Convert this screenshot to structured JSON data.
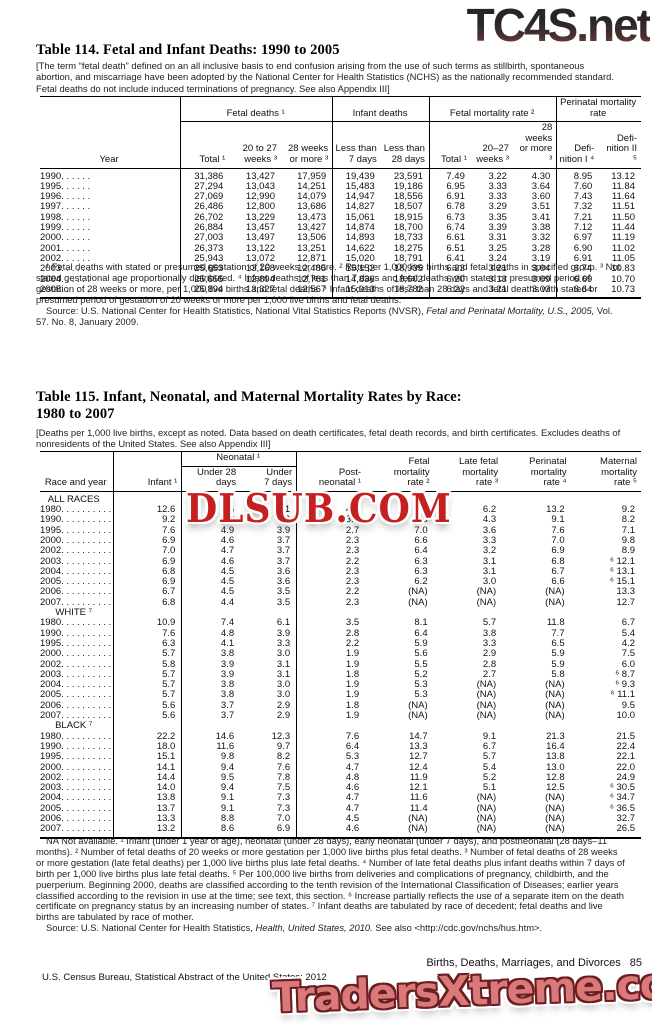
{
  "watermarks": {
    "top": "TC4S.net",
    "middle": "DLSUB.COM",
    "bottom": "TradersXtreme.com",
    "top_color_start": "#262626",
    "top_color_end": "#95564e",
    "middle_color": "#c51f20",
    "bottom_color": "#d9797a"
  },
  "table114": {
    "title": "Table 114. Fetal and Infant Deaths: 1990 to 2005",
    "note": "[The term “fetal death” defined on an all inclusive basis to end confusion arising from the use of such terms as stillbirth, spontaneous abortion, and miscarriage have been adopted by the National Center for Health Statistics (NCHS) as the nationally recommended standard. Fetal deaths do not include induced terminations of pregnancy. See also Appendix III]",
    "header": {
      "year": "Year",
      "groups": [
        "Fetal deaths ¹",
        "Infant deaths",
        "Fetal mortality rate ²",
        "Perinatal mortality rate"
      ],
      "sub": [
        "Total ¹",
        "20 to 27\nweeks ³",
        "28 weeks\nor more ³",
        "Less than\n7 days",
        "Less than\n28 days",
        "Total ¹",
        "20–27\nweeks ³",
        "28 weeks\nor more ³",
        "Defi-\nnition I ⁴",
        "Defi-\nnition II ⁵"
      ]
    },
    "rows": [
      [
        "1990. . . . . .",
        "31,386",
        "13,427",
        "17,959",
        "19,439",
        "23,591",
        "7.49",
        "3.22",
        "4.30",
        "8.95",
        "13.12"
      ],
      [
        "1995. . . . . .",
        "27,294",
        "13,043",
        "14,251",
        "15,483",
        "19,186",
        "6.95",
        "3.33",
        "3.64",
        "7.60",
        "11.84"
      ],
      [
        "1996. . . . . .",
        "27,069",
        "12,990",
        "14,079",
        "14,947",
        "18,556",
        "6.91",
        "3.33",
        "3.60",
        "7.43",
        "11.64"
      ],
      [
        "1997. . . . . .",
        "26,486",
        "12,800",
        "13,686",
        "14,827",
        "18,507",
        "6.78",
        "3.29",
        "3.51",
        "7.32",
        "11.51"
      ],
      [
        "1998. . . . . .",
        "26,702",
        "13,229",
        "13,473",
        "15,061",
        "18,915",
        "6.73",
        "3.35",
        "3.41",
        "7.21",
        "11.50"
      ],
      [
        "1999. . . . . .",
        "26,884",
        "13,457",
        "13,427",
        "14,874",
        "18,700",
        "6.74",
        "3.39",
        "3.38",
        "7.12",
        "11.44"
      ],
      [
        "2000. . . . . .",
        "27,003",
        "13,497",
        "13,506",
        "14,893",
        "18,733",
        "6.61",
        "3.31",
        "3.32",
        "6.97",
        "11.19"
      ],
      [
        "2001. . . . . .",
        "26,373",
        "13,122",
        "13,251",
        "14,622",
        "18,275",
        "6.51",
        "3.25",
        "3.28",
        "6.90",
        "11.02"
      ],
      [
        "2002. . . . . .",
        "25,943",
        "13,072",
        "12,871",
        "15,020",
        "18,791",
        "6.41",
        "3.24",
        "3.19",
        "6.91",
        "11.05"
      ],
      [
        "2003. . . . . .",
        "25,653",
        "13,168",
        "12,485",
        "15,152",
        "18,935",
        "6.23",
        "3.21",
        "3.04",
        "6.74",
        "10.83"
      ],
      [
        "2004. . . . . .",
        "25,655",
        "12,894",
        "12,761",
        "14,836",
        "18,602",
        "6.20",
        "3.13",
        "3.09",
        "6.69",
        "10.70"
      ],
      [
        "2005. . . . . .",
        "25,894",
        "13,327",
        "12,567",
        "15,013",
        "18,782",
        "6.22",
        "3.21",
        "3.03",
        "6.64",
        "10.73"
      ]
    ],
    "footnotes": "¹ Fetal deaths with stated or presumed gestation of 20 weeks or more. ² Rate per 1,000 live births and fetal deaths in specified group. ³ Not stated gestational age proportionally distributed. ⁴ Infant deaths of less than 7 days and fetal deaths with stated or presumed period of gestation of 28 weeks or more, per 1,000 live births and fetal deaths. ⁵ Infant deaths of less than 28 days and fetal deaths with stated or presumed period of gestation of 20 weeks or more per 1,000 live births and fetal deaths.",
    "source_prefix": "Source: U.S. National Center for Health Statistics, National Vital Statistics Reports (NVSR), ",
    "source_italic": "Fetal and Perinatal Mortality, U.S., 2005,",
    "source_suffix": " Vol. 57. No. 8, January 2009."
  },
  "table115": {
    "title": "Table 115. Infant, Neonatal, and Maternal Mortality Rates by Race:\n1980 to 2007",
    "note": "[Deaths per 1,000 live births, except as noted. Data based on death certificates, fetal death records, and birth certificates. Excludes deaths of nonresidents of the United States. See also Appendix III]",
    "header": {
      "race": "Race and year",
      "infant": "Infant ¹",
      "neonatal_group": "Neonatal ¹",
      "under28": "Under 28\ndays",
      "under7": "Under\n7 days",
      "postneonatal": "Post-\nneonatal ¹",
      "fetal": "Fetal\nmortality\nrate ²",
      "late_fetal": "Late fetal\nmortality\nrate ³",
      "perinatal": "Perinatal\nmortality\nrate ⁴",
      "maternal": "Maternal\nmortality\nrate ⁵"
    },
    "sections": [
      {
        "label": "ALL RACES",
        "rows": [
          [
            "1980. . . . . . . . . .",
            "12.6",
            "8.5",
            "7.1",
            "4.1",
            "9.1",
            "6.2",
            "13.2",
            "9.2"
          ],
          [
            "1990. . . . . . . . . .",
            "9.2",
            "5.8",
            "4.8",
            "3.4",
            "7.5",
            "4.3",
            "9.1",
            "8.2"
          ],
          [
            "1995. . . . . . . . . .",
            "7.6",
            "4.9",
            "3.9",
            "2.7",
            "7.0",
            "3.6",
            "7.6",
            "7.1"
          ],
          [
            "2000. . . . . . . . . .",
            "6.9",
            "4.6",
            "3.7",
            "2.3",
            "6.6",
            "3.3",
            "7.0",
            "9.8"
          ],
          [
            "2002. . . . . . . . . .",
            "7.0",
            "4.7",
            "3.7",
            "2.3",
            "6.4",
            "3.2",
            "6.9",
            "8.9"
          ],
          [
            "2003. . . . . . . . . .",
            "6.9",
            "4.6",
            "3.7",
            "2.2",
            "6.3",
            "3.1",
            "6.8",
            "⁶ 12.1"
          ],
          [
            "2004. . . . . . . . . .",
            "6.8",
            "4.5",
            "3.6",
            "2.3",
            "6.3",
            "3.1",
            "6.7",
            "⁶ 13.1"
          ],
          [
            "2005. . . . . . . . . .",
            "6.9",
            "4.5",
            "3.6",
            "2.3",
            "6.2",
            "3.0",
            "6.6",
            "⁶ 15.1"
          ],
          [
            "2006. . . . . . . . . .",
            "6.7",
            "4.5",
            "3.5",
            "2.2",
            "(NA)",
            "(NA)",
            "(NA)",
            "13.3"
          ],
          [
            "2007. . . . . . . . . .",
            "6.8",
            "4.4",
            "3.5",
            "2.3",
            "(NA)",
            "(NA)",
            "(NA)",
            "12.7"
          ]
        ]
      },
      {
        "label": "WHITE ⁷",
        "rows": [
          [
            "1980. . . . . . . . . .",
            "10.9",
            "7.4",
            "6.1",
            "3.5",
            "8.1",
            "5.7",
            "11.8",
            "6.7"
          ],
          [
            "1990. . . . . . . . . .",
            "7.6",
            "4.8",
            "3.9",
            "2.8",
            "6.4",
            "3.8",
            "7.7",
            "5.4"
          ],
          [
            "1995. . . . . . . . . .",
            "6.3",
            "4.1",
            "3.3",
            "2.2",
            "5.9",
            "3.3",
            "6.5",
            "4.2"
          ],
          [
            "2000. . . . . . . . . .",
            "5.7",
            "3.8",
            "3.0",
            "1.9",
            "5.6",
            "2.9",
            "5.9",
            "7.5"
          ],
          [
            "2002. . . . . . . . . .",
            "5.8",
            "3.9",
            "3.1",
            "1.9",
            "5.5",
            "2.8",
            "5.9",
            "6.0"
          ],
          [
            "2003. . . . . . . . . .",
            "5.7",
            "3.9",
            "3.1",
            "1.8",
            "5.2",
            "2.7",
            "5.8",
            "⁶ 8.7"
          ],
          [
            "2004. . . . . . . . . .",
            "5.7",
            "3.8",
            "3.0",
            "1.9",
            "5.3",
            "(NA)",
            "(NA)",
            "⁶ 9.3"
          ],
          [
            "2005. . . . . . . . . .",
            "5.7",
            "3.8",
            "3.0",
            "1.9",
            "5.3",
            "(NA)",
            "(NA)",
            "⁶ 11.1"
          ],
          [
            "2006. . . . . . . . . .",
            "5.6",
            "3.7",
            "2.9",
            "1.8",
            "(NA)",
            "(NA)",
            "(NA)",
            "9.5"
          ],
          [
            "2007. . . . . . . . . .",
            "5.6",
            "3.7",
            "2.9",
            "1.9",
            "(NA)",
            "(NA)",
            "(NA)",
            "10.0"
          ]
        ]
      },
      {
        "label": "BLACK ⁷",
        "rows": [
          [
            "1980. . . . . . . . . .",
            "22.2",
            "14.6",
            "12.3",
            "7.6",
            "14.7",
            "9.1",
            "21.3",
            "21.5"
          ],
          [
            "1990. . . . . . . . . .",
            "18.0",
            "11.6",
            "9.7",
            "6.4",
            "13.3",
            "6.7",
            "16.4",
            "22.4"
          ],
          [
            "1995. . . . . . . . . .",
            "15.1",
            "9.8",
            "8.2",
            "5.3",
            "12.7",
            "5.7",
            "13.8",
            "22.1"
          ],
          [
            "2000. . . . . . . . . .",
            "14.1",
            "9.4",
            "7.6",
            "4.7",
            "12.4",
            "5.4",
            "13.0",
            "22.0"
          ],
          [
            "2002. . . . . . . . . .",
            "14.4",
            "9.5",
            "7.8",
            "4.8",
            "11.9",
            "5.2",
            "12.8",
            "24.9"
          ],
          [
            "2003. . . . . . . . . .",
            "14.0",
            "9.4",
            "7.5",
            "4.6",
            "12.1",
            "5.1",
            "12.5",
            "⁶ 30.5"
          ],
          [
            "2004. . . . . . . . . .",
            "13.8",
            "9.1",
            "7.3",
            "4.7",
            "11.6",
            "(NA)",
            "(NA)",
            "⁶ 34.7"
          ],
          [
            "2005. . . . . . . . . .",
            "13.7",
            "9.1",
            "7.3",
            "4.7",
            "11.4",
            "(NA)",
            "(NA)",
            "⁶ 36.5"
          ],
          [
            "2006. . . . . . . . . .",
            "13.3",
            "8.8",
            "7.0",
            "4.5",
            "(NA)",
            "(NA)",
            "(NA)",
            "32.7"
          ],
          [
            "2007. . . . . . . . . .",
            "13.2",
            "8.6",
            "6.9",
            "4.6",
            "(NA)",
            "(NA)",
            "(NA)",
            "26.5"
          ]
        ]
      }
    ],
    "footnotes": "NA Not available. ¹ Infant (under 1 year of age), neonatal (under 28 days), early neonatal (under 7 days), and postneonatal (28 days–11 months). ² Number of fetal deaths of 20 weeks or more gestation per 1,000 live births plus fetal deaths. ³ Number of fetal deaths of 28 weeks or more gestation (late fetal deaths) per 1,000 live births plus late fetal deaths. ⁴ Number of late fetal deaths plus infant deaths within 7 days of birth per 1,000 live births plus late fetal deaths. ⁵ Per 100,000 live births from deliveries and complications of pregnancy, childbirth, and the puerperium. Beginning 2000, deaths are classified according to the tenth revision of the International Classification of Diseases; earlier years classified according to the revision in use at the time; see text, this section. ⁶ Increase partially reflects the use of a separate item on the death certificate on pregnancy status by an increasing number of states. ⁷ Infant deaths are tabulated by race of decedent; fetal deaths and live births are tabulated by race of mother.",
    "source_prefix": "Source: U.S. National Center for Health Statistics, ",
    "source_italic": "Health, United States, 2010.",
    "source_suffix": " See also <http://cdc.gov/nchs/hus.htm>."
  },
  "footer": {
    "section_title": "Births, Deaths, Marriages, and Divorces",
    "page_number": "85",
    "imprint": "U.S. Census Bureau, Statistical Abstract of the United States: 2012"
  }
}
